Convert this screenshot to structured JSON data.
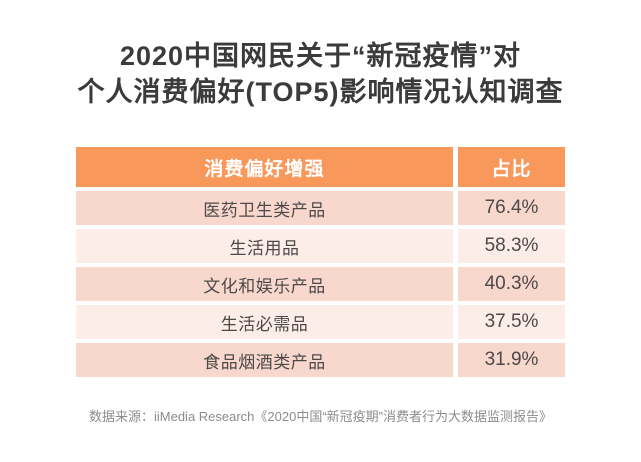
{
  "title": {
    "line1": "2020中国网民关于“新冠疫情”对",
    "line2": "个人消费偏好(TOP5)影响情况认知调查"
  },
  "table": {
    "header": {
      "category": "消费偏好增强",
      "share": "占比"
    },
    "rows": [
      {
        "label": "医药卫生类产品",
        "value": "76.4%"
      },
      {
        "label": "生活用品",
        "value": "58.3%"
      },
      {
        "label": "文化和娱乐产品",
        "value": "40.3%"
      },
      {
        "label": "生活必需品",
        "value": "37.5%"
      },
      {
        "label": "食品烟酒类产品",
        "value": "31.9%"
      }
    ]
  },
  "footer": {
    "source": "数据来源：iiMedia Research《2020中国“新冠疫期”消费者行为大数据监测报告》"
  },
  "colors": {
    "header_bg": "#F8995B",
    "header_text": "#FFFFFF",
    "row_dark": "#F8D8CD",
    "row_light": "#FCEDE8",
    "title_text": "#3B3B3B",
    "row_text": "#4D4949",
    "footer_text": "#8C8C8C"
  },
  "chart_data": {
    "type": "table",
    "title": "2020中国网民关于“新冠疫情”对个人消费偏好(TOP5)影响情况认知调查",
    "columns": [
      "消费偏好增强",
      "占比"
    ],
    "categories": [
      "医药卫生类产品",
      "生活用品",
      "文化和娱乐产品",
      "生活必需品",
      "食品烟酒类产品"
    ],
    "values": [
      76.4,
      58.3,
      40.3,
      37.5,
      31.9
    ],
    "unit": "%",
    "source": "数据来源：iiMedia Research《2020中国“新冠疫期”消费者行为大数据监测报告》"
  }
}
